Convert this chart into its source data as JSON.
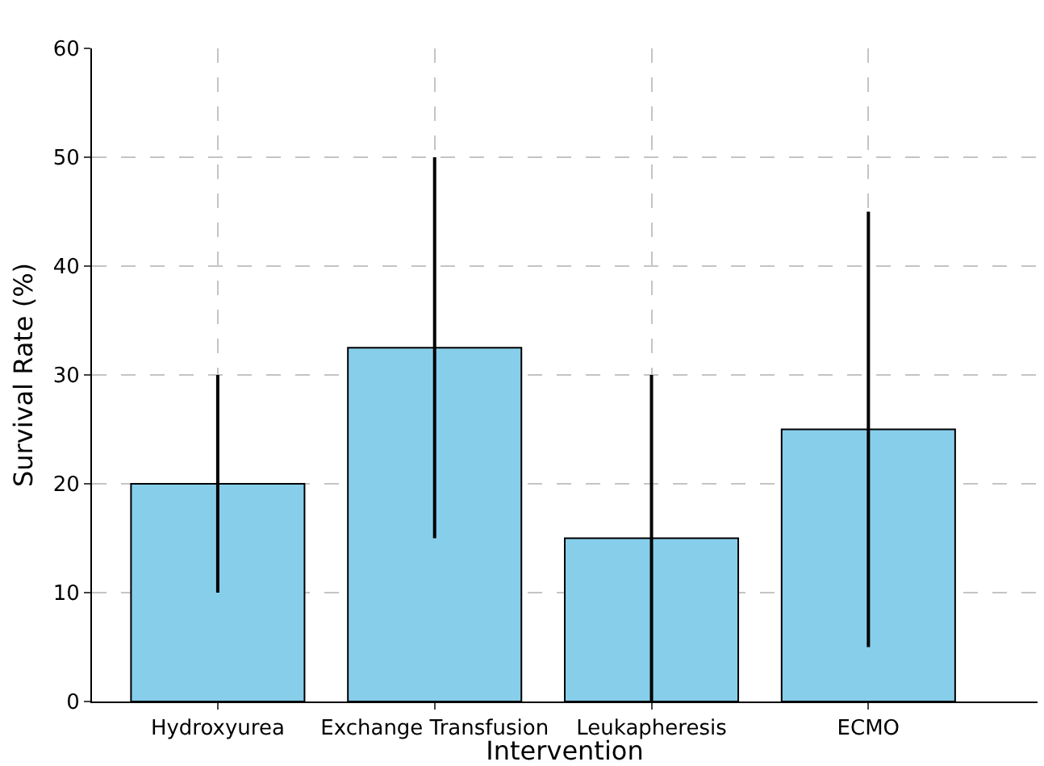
{
  "chart_data": {
    "type": "bar",
    "xlabel": "Intervention",
    "ylabel": "Survival Rate (%)",
    "categories": [
      "Hydroxyurea",
      "Exchange Transfusion",
      "Leukapheresis",
      "ECMO"
    ],
    "values": [
      20,
      32.5,
      15,
      25
    ],
    "errors": [
      10,
      17.5,
      15,
      20
    ],
    "color": "#87ceeb",
    "ylim": [
      0,
      60
    ],
    "yticks": [
      0,
      10,
      20,
      30,
      40,
      50,
      60
    ],
    "grid": true
  }
}
